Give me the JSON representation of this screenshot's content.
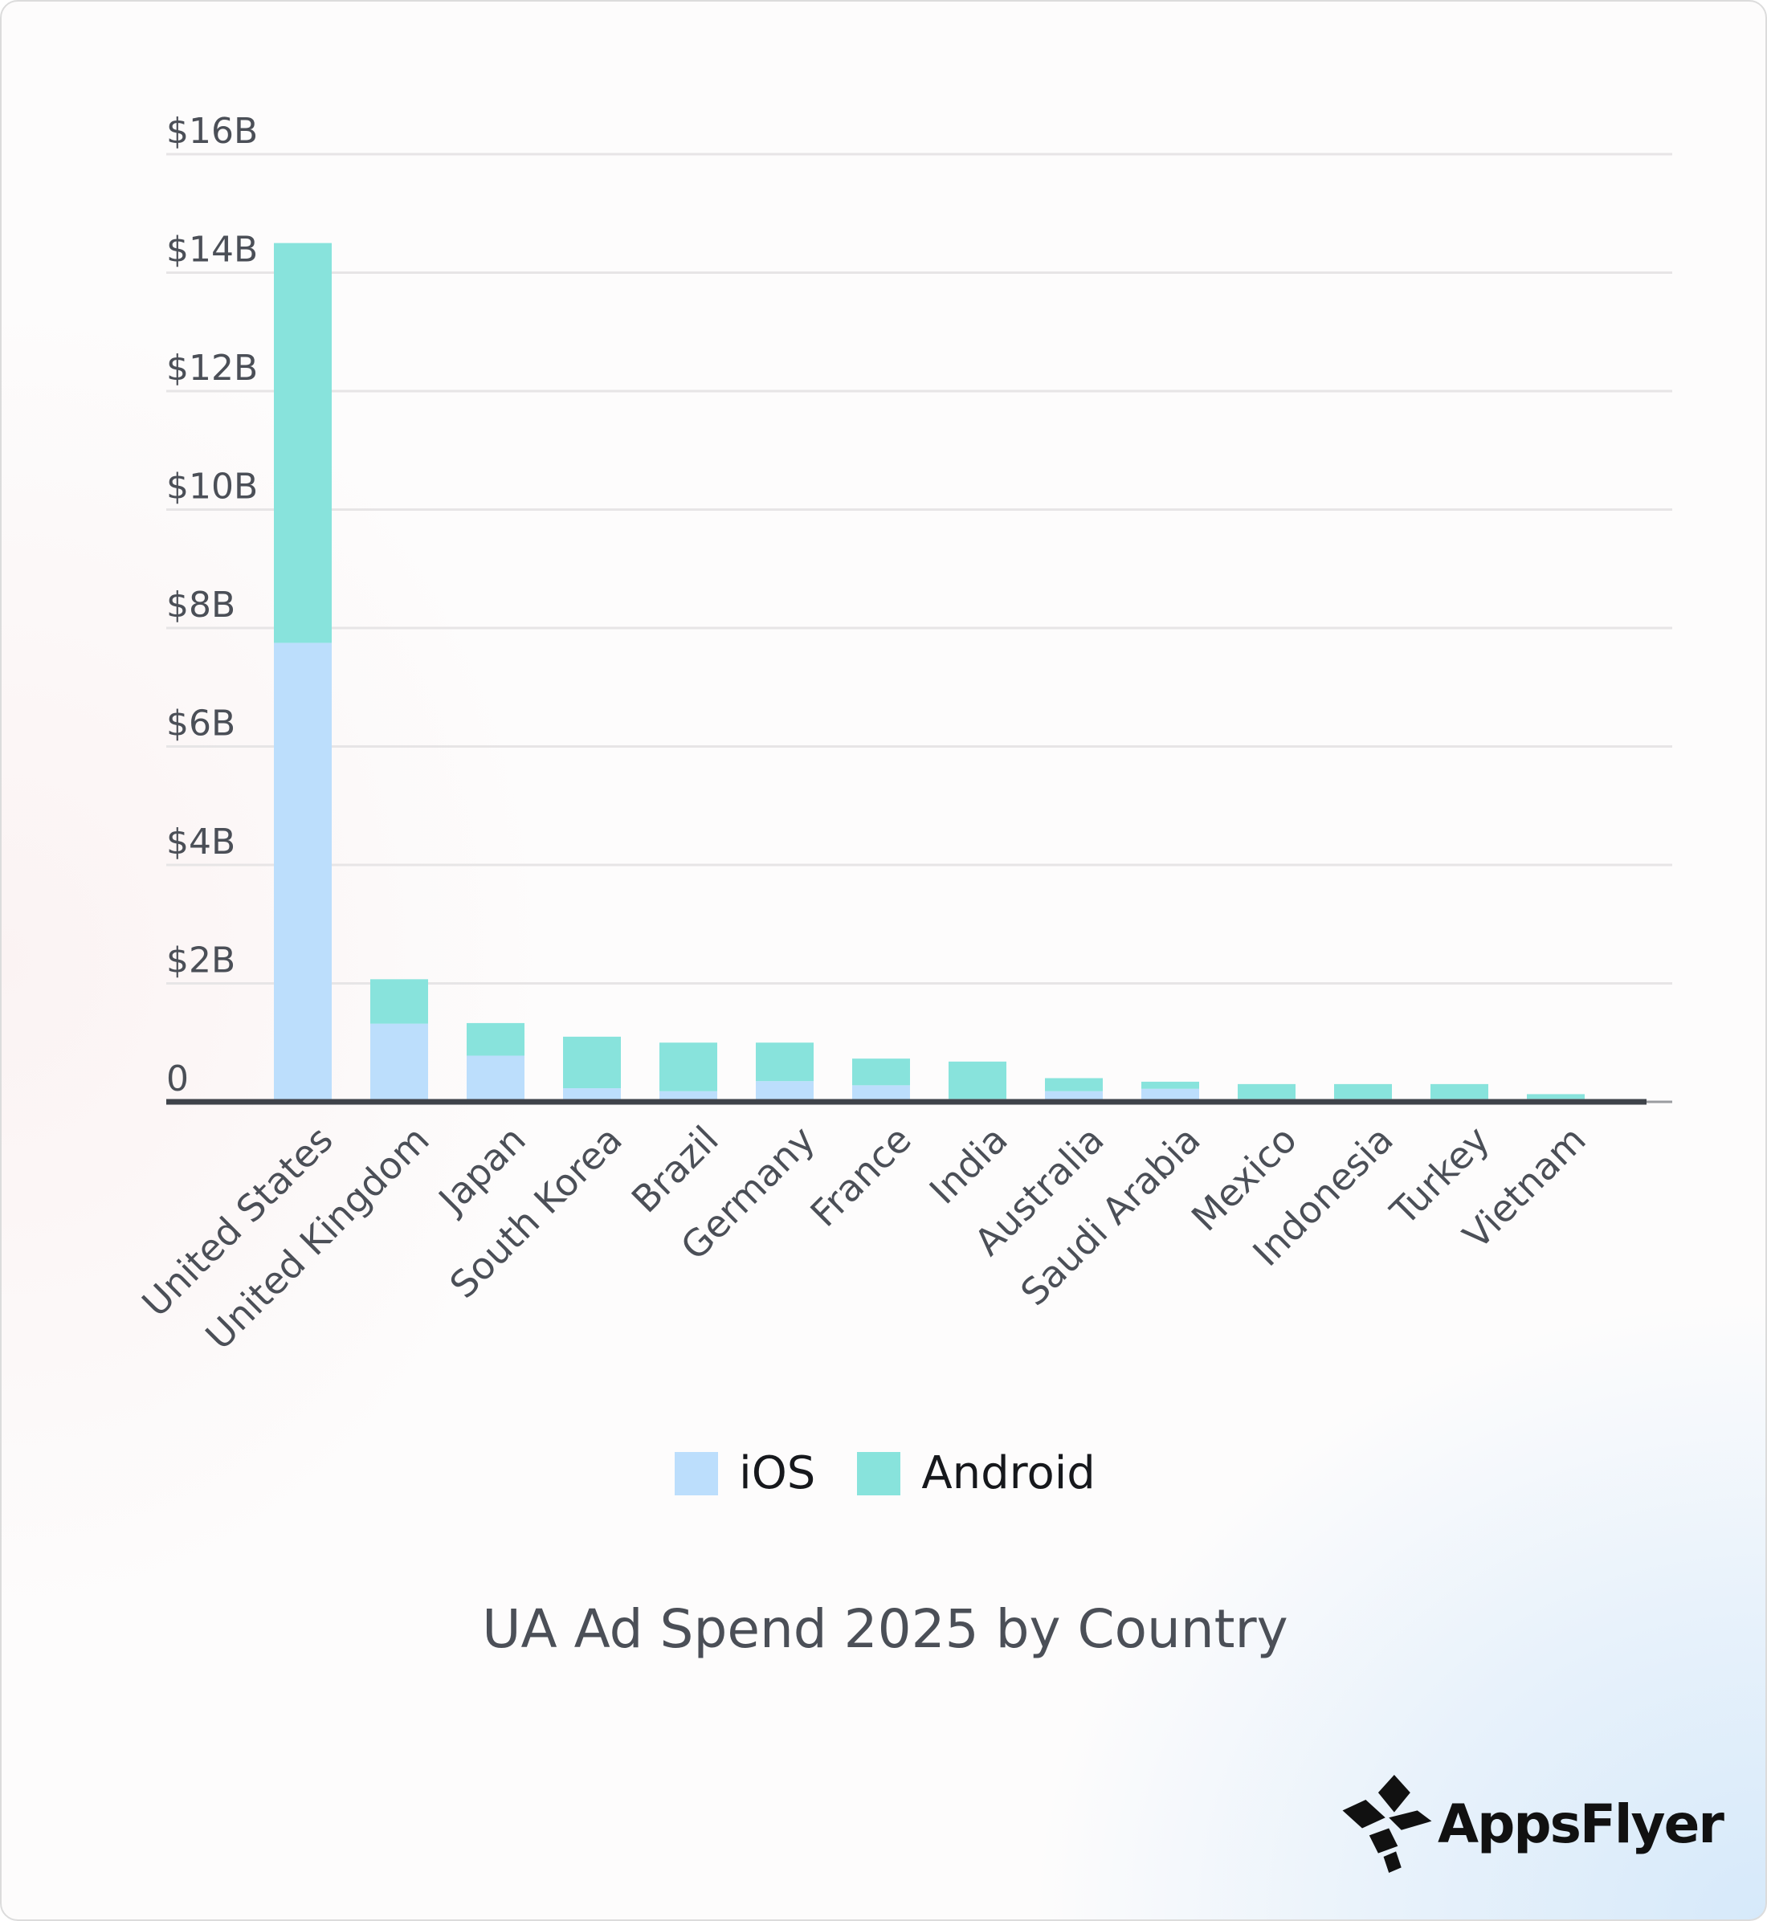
{
  "chart_data": {
    "type": "bar",
    "stacked": true,
    "title": "UA Ad Spend 2025 by Country",
    "xlabel": "",
    "ylabel": "",
    "ylim": [
      0,
      16
    ],
    "y_unit": "billions USD",
    "y_ticks": [
      0,
      2,
      4,
      6,
      8,
      10,
      12,
      14,
      16
    ],
    "y_tick_labels": [
      "0",
      "$2B",
      "$4B",
      "$6B",
      "$8B",
      "$10B",
      "$12B",
      "$14B",
      "$16B"
    ],
    "grid": true,
    "categories": [
      "United States",
      "United Kingdom",
      "Japan",
      "South Korea",
      "Brazil",
      "Germany",
      "France",
      "India",
      "Australia",
      "Saudi Arabia",
      "Mexico",
      "Indonesia",
      "Turkey",
      "Vietnam"
    ],
    "series": [
      {
        "name": "iOS",
        "color": "#bcdefc",
        "values": [
          7.75,
          1.32,
          0.78,
          0.23,
          0.18,
          0.35,
          0.28,
          0.05,
          0.18,
          0.22,
          0.05,
          0.05,
          0.05,
          0.05
        ]
      },
      {
        "name": "Android",
        "color": "#88e3dc",
        "values": [
          6.75,
          0.75,
          0.55,
          0.87,
          0.82,
          0.65,
          0.45,
          0.63,
          0.22,
          0.12,
          0.25,
          0.25,
          0.25,
          0.08
        ]
      }
    ],
    "legend_position": "bottom-center"
  },
  "branding": {
    "logo_icon": "appsflyer-logo-icon",
    "wordmark": "AppsFlyer"
  },
  "colors": {
    "axis": "#3f434a",
    "grid": "#e7e5e6",
    "text": "#4b4f57"
  }
}
